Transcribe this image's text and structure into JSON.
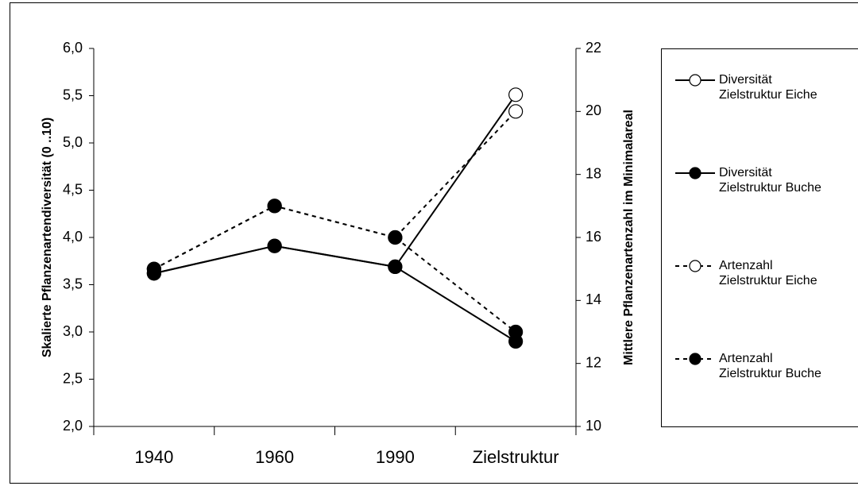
{
  "chart_data": {
    "type": "line",
    "categories": [
      "1940",
      "1960",
      "1990",
      "Zielstruktur"
    ],
    "ylabel": "Skalierte Pflanzenartendiversität (0 ..10)",
    "y2label": "Mittlere Pflanzenartenzahl im Minimalareal",
    "ylim": [
      2,
      6
    ],
    "yticks": [
      {
        "value": 2,
        "label": "2,0"
      },
      {
        "value": 2.5,
        "label": "2,5"
      },
      {
        "value": 3,
        "label": "3,0"
      },
      {
        "value": 3.5,
        "label": "3,5"
      },
      {
        "value": 4,
        "label": "4,0"
      },
      {
        "value": 4.5,
        "label": "4,5"
      },
      {
        "value": 5,
        "label": "5,0"
      },
      {
        "value": 5.5,
        "label": "5,5"
      },
      {
        "value": 6,
        "label": "6,0"
      }
    ],
    "y2lim": [
      10,
      22
    ],
    "y2ticks": [
      10,
      12,
      14,
      16,
      18,
      20,
      22
    ],
    "legend": "right",
    "series": [
      {
        "name": "Diversität Zielstruktur Eiche",
        "color": "#000000",
        "marker": "open",
        "dashed": false,
        "values": [
          3.62,
          3.91,
          3.69,
          5.51
        ]
      },
      {
        "name": "Diversität Zielstruktur Buche",
        "color": "#000000",
        "marker": "filled",
        "dashed": false,
        "values": [
          3.62,
          3.91,
          3.69,
          2.9
        ]
      },
      {
        "name": "Artenzahl Zielstruktur Eiche",
        "color": "#000000",
        "marker": "open",
        "dashed": true,
        "axis": "y2",
        "values": [
          15,
          17,
          16,
          20
        ]
      },
      {
        "name": "Artenzahl Zielstruktur Buche",
        "color": "#000000",
        "marker": "filled",
        "dashed": true,
        "axis": "y2",
        "values": [
          15,
          17,
          16,
          13
        ]
      }
    ]
  }
}
